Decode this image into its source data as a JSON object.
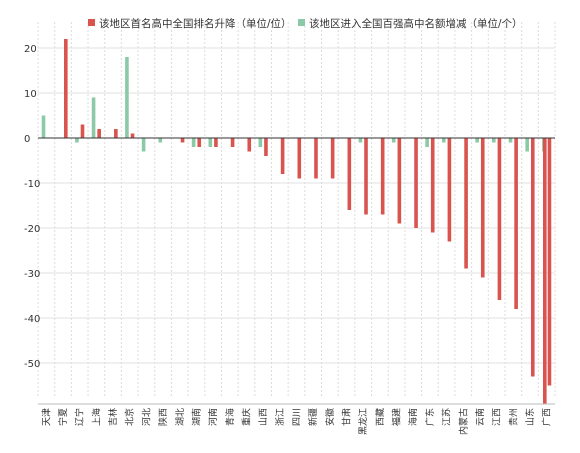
{
  "chart_data": {
    "type": "bar",
    "categories": [
      "天津",
      "宁夏",
      "辽宁",
      "上海",
      "吉林",
      "北京",
      "河北",
      "陕西",
      "湖北",
      "湖南",
      "河南",
      "青海",
      "重庆",
      "山西",
      "浙江",
      "四川",
      "新疆",
      "安徽",
      "甘肃",
      "黑龙江",
      "西藏",
      "福建",
      "海南",
      "广东",
      "江苏",
      "内蒙古",
      "云南",
      "江西",
      "贵州",
      "山东",
      "广西"
    ],
    "series": [
      {
        "name": "该地区首名高中全国排名升降（单位/位）",
        "color": "#d9534f",
        "values": [
          0,
          22,
          3,
          2,
          2,
          1,
          0,
          0,
          -1,
          -2,
          -2,
          -2,
          -3,
          -4,
          -8,
          -9,
          -9,
          -9,
          -16,
          -17,
          -17,
          -19,
          -20,
          -21,
          -23,
          -29,
          -31,
          -36,
          -38,
          -53,
          -55
        ]
      },
      {
        "name": "该地区进入全国百强高中名额增减（单位/个）",
        "color": "#8cc9a6",
        "values": [
          5,
          0,
          -1,
          9,
          0,
          18,
          -3,
          -1,
          0,
          -2,
          -2,
          0,
          0,
          -2,
          0,
          0,
          0,
          0,
          0,
          -1,
          0,
          -1,
          0,
          -2,
          -1,
          0,
          -1,
          -1,
          -1,
          -3,
          -3
        ]
      }
    ],
    "extra_bar": {
      "series": 0,
      "value": -59
    },
    "yticks": [
      20,
      10,
      0,
      -10,
      -20,
      -30,
      -40,
      -50
    ],
    "ylim": [
      -59,
      23
    ],
    "grid": true,
    "legend": "top"
  }
}
